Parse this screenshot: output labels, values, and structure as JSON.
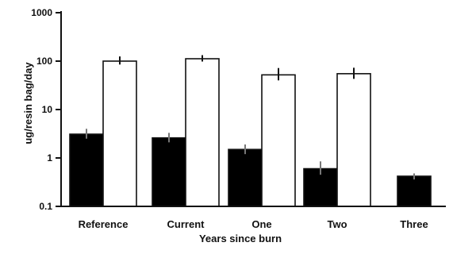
{
  "chart_data": {
    "type": "bar",
    "title": "",
    "xlabel": "Years since burn",
    "ylabel": "ug/resin bag/day",
    "yscale": "log",
    "ylim": [
      0.1,
      1000
    ],
    "yticks": [
      "0.1",
      "1",
      "10",
      "100",
      "1000"
    ],
    "grid": false,
    "legend": "none",
    "categories": [
      "Reference",
      "Current",
      "One",
      "Two",
      "Three"
    ],
    "series": [
      {
        "fill": "#000000",
        "values": [
          3.1,
          2.6,
          1.5,
          0.6,
          0.42
        ],
        "error_upper": [
          4.0,
          3.3,
          1.9,
          0.85,
          0.48
        ],
        "error_lower": [
          2.5,
          2.1,
          1.2,
          0.45,
          0.36
        ]
      },
      {
        "fill": "#ffffff",
        "values": [
          100,
          112,
          52,
          55,
          null
        ],
        "error_upper": [
          125,
          133,
          72,
          73,
          null
        ],
        "error_lower": [
          85,
          98,
          40,
          43,
          null
        ]
      }
    ]
  }
}
